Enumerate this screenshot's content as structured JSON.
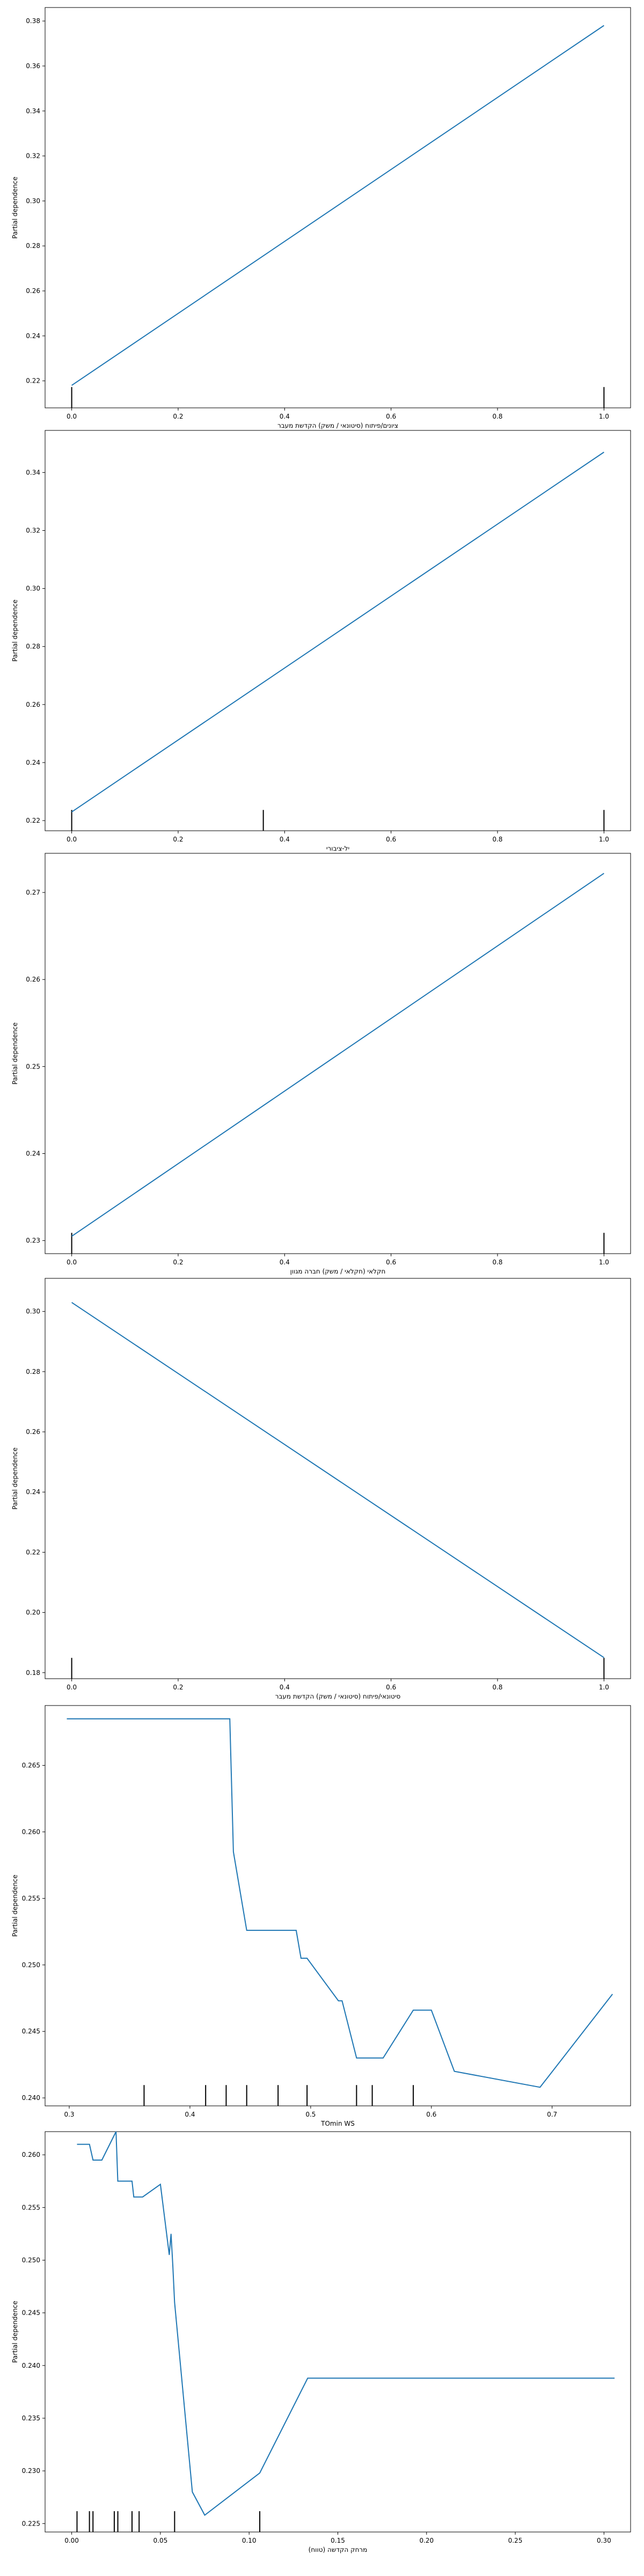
{
  "figure": {
    "line_color": "#1f77b4",
    "rug_color": "#000000",
    "axis_color": "#000000"
  },
  "chart_data": [
    {
      "type": "line",
      "xlabel": "ציונים/פיתוח (סיטונאי / משק) הקדשת מעבר",
      "ylabel": "Partial dependence",
      "xlim": [
        -0.05,
        1.05
      ],
      "ylim": [
        0.208,
        0.386
      ],
      "xticks": [
        0.0,
        0.2,
        0.4,
        0.6,
        0.8,
        1.0
      ],
      "xtick_labels": [
        "0.0",
        "0.2",
        "0.4",
        "0.6",
        "0.8",
        "1.0"
      ],
      "yticks": [
        0.22,
        0.24,
        0.26,
        0.28,
        0.3,
        0.32,
        0.34,
        0.36,
        0.38
      ],
      "ytick_labels": [
        "0.22",
        "0.24",
        "0.26",
        "0.28",
        "0.30",
        "0.32",
        "0.34",
        "0.36",
        "0.38"
      ],
      "x": [
        0.0,
        1.0
      ],
      "y": [
        0.218,
        0.378
      ],
      "rug": [
        0.0,
        1.0
      ]
    },
    {
      "type": "line",
      "xlabel": "יל-ציבורי",
      "ylabel": "Partial dependence",
      "xlim": [
        -0.05,
        1.05
      ],
      "ylim": [
        0.2165,
        0.3545
      ],
      "xticks": [
        0.0,
        0.2,
        0.4,
        0.6,
        0.8,
        1.0
      ],
      "xtick_labels": [
        "0.0",
        "0.2",
        "0.4",
        "0.6",
        "0.8",
        "1.0"
      ],
      "yticks": [
        0.22,
        0.24,
        0.26,
        0.28,
        0.3,
        0.32,
        0.34
      ],
      "ytick_labels": [
        "0.22",
        "0.24",
        "0.26",
        "0.28",
        "0.30",
        "0.32",
        "0.34"
      ],
      "x": [
        0.0,
        1.0
      ],
      "y": [
        0.223,
        0.347
      ],
      "rug": [
        0.0,
        0.36,
        1.0
      ]
    },
    {
      "type": "line",
      "xlabel": "חקלאי (חקלאי / משק) חברה מגוון",
      "ylabel": "Partial dependence",
      "xlim": [
        -0.05,
        1.05
      ],
      "ylim": [
        0.2285,
        0.2745
      ],
      "xticks": [
        0.0,
        0.2,
        0.4,
        0.6,
        0.8,
        1.0
      ],
      "xtick_labels": [
        "0.0",
        "0.2",
        "0.4",
        "0.6",
        "0.8",
        "1.0"
      ],
      "yticks": [
        0.23,
        0.24,
        0.25,
        0.26,
        0.27
      ],
      "ytick_labels": [
        "0.23",
        "0.24",
        "0.25",
        "0.26",
        "0.27"
      ],
      "x": [
        0.0,
        1.0
      ],
      "y": [
        0.2305,
        0.2722
      ],
      "rug": [
        0.0,
        1.0
      ]
    },
    {
      "type": "line",
      "xlabel": "סיטונאי/פיתוח (סיטונאי / משק) הקדשת מעבר",
      "ylabel": "Partial dependence",
      "xlim": [
        -0.05,
        1.05
      ],
      "ylim": [
        0.178,
        0.311
      ],
      "xticks": [
        0.0,
        0.2,
        0.4,
        0.6,
        0.8,
        1.0
      ],
      "xtick_labels": [
        "0.0",
        "0.2",
        "0.4",
        "0.6",
        "0.8",
        "1.0"
      ],
      "yticks": [
        0.18,
        0.2,
        0.22,
        0.24,
        0.26,
        0.28,
        0.3
      ],
      "ytick_labels": [
        "0.18",
        "0.20",
        "0.22",
        "0.24",
        "0.26",
        "0.28",
        "0.30"
      ],
      "x": [
        0.0,
        1.0
      ],
      "y": [
        0.303,
        0.185
      ],
      "rug": [
        0.0,
        1.0
      ]
    },
    {
      "type": "line",
      "xlabel": "TOmin WS",
      "ylabel": "Partial dependence",
      "xlim": [
        0.28,
        0.765
      ],
      "ylim": [
        0.2394,
        0.2695
      ],
      "xticks": [
        0.3,
        0.4,
        0.5,
        0.6,
        0.7
      ],
      "xtick_labels": [
        "0.3",
        "0.4",
        "0.5",
        "0.6",
        "0.7"
      ],
      "yticks": [
        0.24,
        0.245,
        0.25,
        0.255,
        0.26,
        0.265
      ],
      "ytick_labels": [
        "0.240",
        "0.245",
        "0.250",
        "0.255",
        "0.260",
        "0.265"
      ],
      "x": [
        0.298,
        0.372,
        0.41,
        0.427,
        0.433,
        0.436,
        0.447,
        0.488,
        0.492,
        0.497,
        0.523,
        0.526,
        0.538,
        0.56,
        0.585,
        0.6,
        0.619,
        0.69,
        0.75
      ],
      "y": [
        0.2685,
        0.2685,
        0.2685,
        0.2685,
        0.2685,
        0.2585,
        0.2526,
        0.2526,
        0.2505,
        0.2505,
        0.2473,
        0.2473,
        0.243,
        0.243,
        0.2466,
        0.2466,
        0.242,
        0.2408,
        0.2478
      ],
      "rug": [
        0.362,
        0.413,
        0.43,
        0.447,
        0.473,
        0.497,
        0.538,
        0.551,
        0.585
      ]
    },
    {
      "type": "line",
      "xlabel": "מרחק הקדשה (טווח)",
      "ylabel": "Partial dependence",
      "xlim": [
        -0.015,
        0.315
      ],
      "ylim": [
        0.2242,
        0.2622
      ],
      "xticks": [
        0.0,
        0.05,
        0.1,
        0.15,
        0.2,
        0.25,
        0.3
      ],
      "xtick_labels": [
        "0.00",
        "0.05",
        "0.10",
        "0.15",
        "0.20",
        "0.25",
        "0.30"
      ],
      "yticks": [
        0.225,
        0.23,
        0.235,
        0.24,
        0.245,
        0.25,
        0.255,
        0.26
      ],
      "ytick_labels": [
        "0.225",
        "0.230",
        "0.235",
        "0.240",
        "0.245",
        "0.250",
        "0.255",
        "0.260"
      ],
      "x": [
        0.003,
        0.01,
        0.012,
        0.017,
        0.025,
        0.026,
        0.034,
        0.035,
        0.04,
        0.05,
        0.055,
        0.056,
        0.057,
        0.058,
        0.068,
        0.075,
        0.106,
        0.133,
        0.306
      ],
      "y": [
        0.261,
        0.261,
        0.2595,
        0.2595,
        0.2622,
        0.2575,
        0.2575,
        0.256,
        0.256,
        0.2572,
        0.2505,
        0.2525,
        0.2495,
        0.246,
        0.228,
        0.2258,
        0.2298,
        0.2388,
        0.2388
      ],
      "rug": [
        0.003,
        0.01,
        0.012,
        0.024,
        0.026,
        0.034,
        0.038,
        0.058,
        0.106
      ]
    }
  ]
}
